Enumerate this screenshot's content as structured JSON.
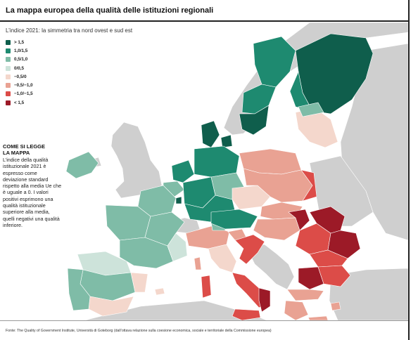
{
  "header": {
    "title": "La mappa europea della qualità delle istituzioni regionali",
    "subtitle": "L’indice 2021: la simmetria tra nord ovest e sud est"
  },
  "legend": {
    "items": [
      {
        "label": "> 1,5",
        "color": "#0f5e4c"
      },
      {
        "label": "1,0/1,5",
        "color": "#1e8a70"
      },
      {
        "label": "0,5/1,0",
        "color": "#7fbca7"
      },
      {
        "label": "0/0,5",
        "color": "#cde3da"
      },
      {
        "label": "−0,5/0",
        "color": "#f4d7cc"
      },
      {
        "label": "−0,5/−1,0",
        "color": "#e9a293"
      },
      {
        "label": "−1,0/−1,5",
        "color": "#dc4c48"
      },
      {
        "label": "< 1,5",
        "color": "#9c1a27"
      }
    ]
  },
  "howto": {
    "heading": "COME SI LEGGE LA MAPPA",
    "text": "L’indice della qualità istituzionale 2021 è espresso come deviazione standard rispetto alla media Ue che è uguale a 0. I valori positivi esprimono una qualità istituzionale superiore alla media, quelli negativi una qualità inferiore."
  },
  "source": "Fonte: The Quality of Government Institute, Università di Goteborg (dall’ottava relazione sulla coesione economica, sociale e territoriale della Commissione          europea)",
  "map_colors": {
    "sea": "#ffffff",
    "no_data": "#cfcfcf"
  }
}
